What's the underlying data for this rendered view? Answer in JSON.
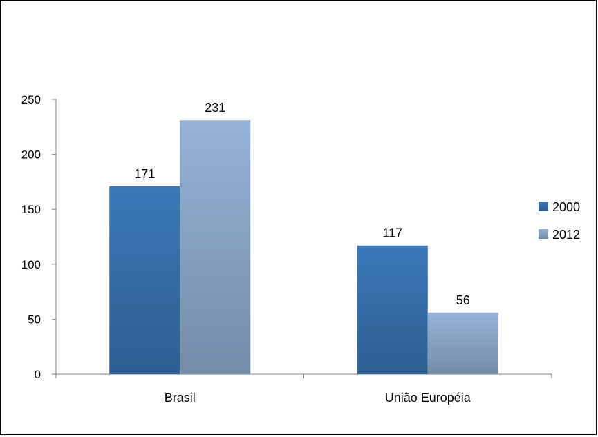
{
  "chart_data": {
    "type": "bar",
    "categories": [
      "Brasil",
      "União Européia"
    ],
    "series": [
      {
        "name": "2000",
        "values": [
          171,
          117
        ],
        "color": "#3b78b8"
      },
      {
        "name": "2012",
        "values": [
          231,
          56
        ],
        "color": "#95b3d7"
      }
    ],
    "ylim": [
      0,
      250
    ],
    "yticks": [
      0,
      50,
      100,
      150,
      200,
      250
    ],
    "data_labels": true,
    "legend_position": "right",
    "grid": false
  }
}
